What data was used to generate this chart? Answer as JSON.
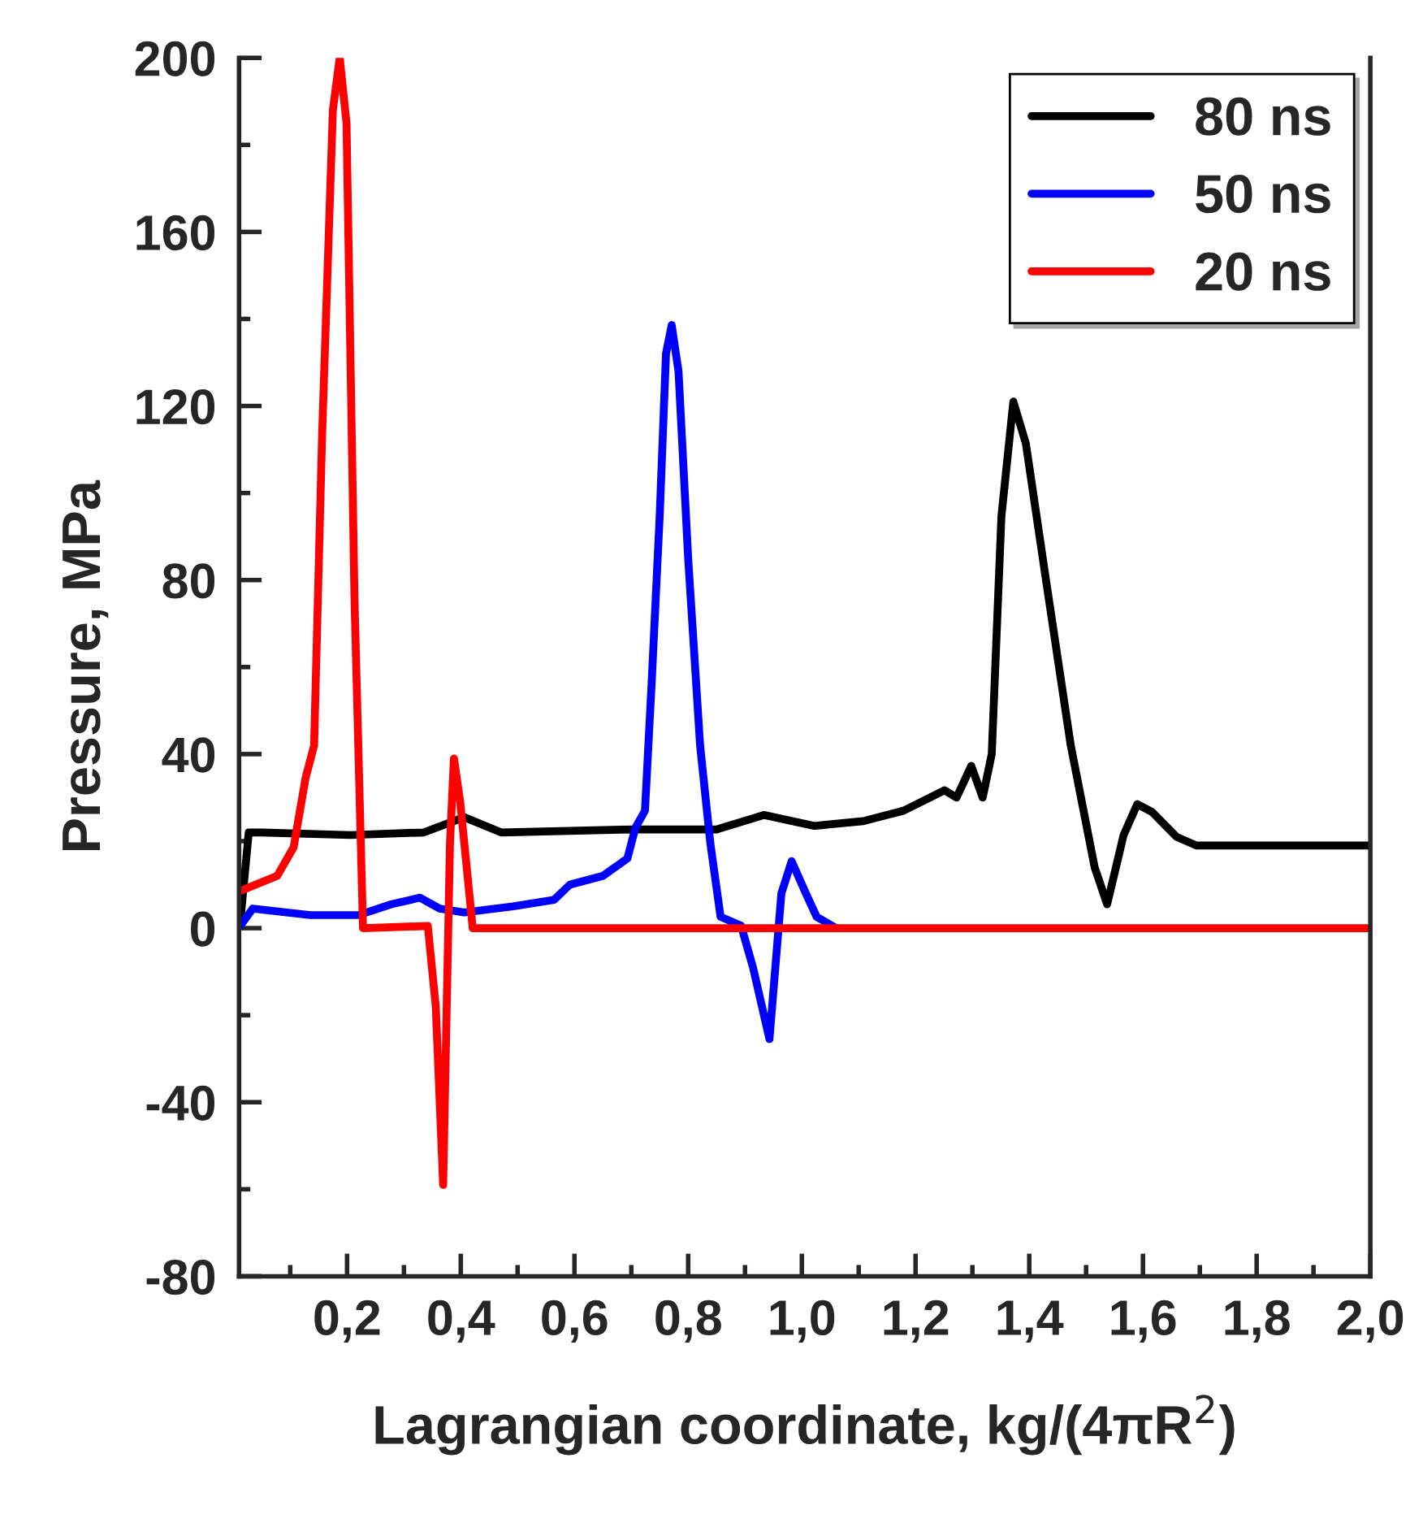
{
  "chart_data": {
    "type": "line",
    "xlabel": "Lagrangian coordinate, kg/(4πR$^{2}$)",
    "ylabel": "Pressure, MPa",
    "xlim": [
      0.01,
      2.0
    ],
    "ylim": [
      -80,
      200
    ],
    "xticks": [
      {
        "value": 0.2,
        "label": "0,2"
      },
      {
        "value": 0.4,
        "label": "0,4"
      },
      {
        "value": 0.6,
        "label": "0,6"
      },
      {
        "value": 0.8,
        "label": "0,8"
      },
      {
        "value": 1.0,
        "label": "1,0"
      },
      {
        "value": 1.2,
        "label": "1,2"
      },
      {
        "value": 1.4,
        "label": "1,4"
      },
      {
        "value": 1.6,
        "label": "1,6"
      },
      {
        "value": 1.8,
        "label": "1,8"
      },
      {
        "value": 2.0,
        "label": "2,0"
      }
    ],
    "yticks": [
      -80,
      -40,
      0,
      40,
      80,
      120,
      160,
      200
    ],
    "grid": false,
    "legend": "top right",
    "marker": "none",
    "line_style": "solid",
    "series": [
      {
        "name": "80 ns",
        "color": "#000000",
        "x": [
          0.013,
          0.027,
          0.05,
          0.206,
          0.335,
          0.406,
          0.471,
          0.707,
          0.85,
          0.933,
          1.022,
          1.108,
          1.179,
          1.251,
          1.272,
          1.298,
          1.318,
          1.334,
          1.351,
          1.372,
          1.394,
          1.43,
          1.473,
          1.515,
          1.537,
          1.566,
          1.59,
          1.616,
          1.659,
          1.694,
          2.0
        ],
        "values": [
          2.6,
          22,
          22,
          21.4,
          22,
          25.5,
          22,
          22.7,
          22.7,
          26,
          23.5,
          24.6,
          27,
          31.7,
          30,
          37.3,
          30,
          40,
          94.6,
          121,
          111.4,
          79.5,
          42,
          14,
          5.5,
          21.4,
          28.5,
          26.7,
          21,
          19,
          19
        ]
      },
      {
        "name": "50 ns",
        "color": "#0000ff",
        "x": [
          0.013,
          0.034,
          0.135,
          0.22,
          0.278,
          0.328,
          0.363,
          0.406,
          0.492,
          0.564,
          0.592,
          0.65,
          0.693,
          0.707,
          0.724,
          0.736,
          0.75,
          0.761,
          0.771,
          0.783,
          0.8,
          0.821,
          0.839,
          0.857,
          0.893,
          0.914,
          0.943,
          0.964,
          0.982,
          1.007,
          1.026,
          1.06
        ],
        "values": [
          0.7,
          4.5,
          3,
          3,
          5.5,
          7,
          4.5,
          3.6,
          5,
          6.5,
          10,
          12,
          16,
          23,
          27,
          57,
          95,
          132,
          138.6,
          128,
          85,
          42,
          19.5,
          2.6,
          0.6,
          -9,
          -25.5,
          8,
          15.4,
          8,
          2.6,
          0
        ]
      },
      {
        "name": "20 ns",
        "color": "#ff0000",
        "x": [
          0.013,
          0.077,
          0.106,
          0.127,
          0.142,
          0.156,
          0.175,
          0.187,
          0.199,
          0.213,
          0.228,
          0.342,
          0.356,
          0.369,
          0.381,
          0.388,
          0.399,
          0.421,
          2.0
        ],
        "values": [
          8.6,
          12,
          18.6,
          34.5,
          42,
          113,
          188,
          200,
          185,
          76,
          0,
          0.5,
          -18,
          -59,
          19.5,
          39,
          29,
          0,
          0
        ]
      }
    ]
  }
}
